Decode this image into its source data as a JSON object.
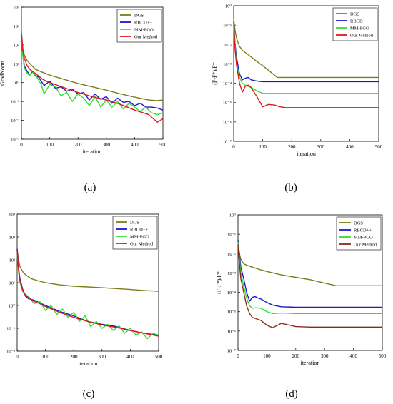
{
  "colors": {
    "DGS": "#7d7d1a",
    "RBCD++": "#1a1acc",
    "MM-PGO": "#33dd33",
    "Our Method": "#dd1a1a",
    "Our Method (d)": "#8b2a1a"
  },
  "captions": [
    "(a)",
    "(b)",
    "(c)",
    "(d)"
  ],
  "chart_data": [
    {
      "type": "line",
      "panel": "a",
      "xlabel": "iteration",
      "ylabel": "GradNorm",
      "xlim": [
        0,
        500
      ],
      "ylim_log10": [
        -3,
        4
      ],
      "xticks": [
        "0",
        "100",
        "200",
        "300",
        "400",
        "500"
      ],
      "yticks": [
        "10⁻³",
        "10⁻²",
        "10⁻¹",
        "10⁰",
        "10¹",
        "10²",
        "10³",
        "10⁴"
      ],
      "legend": "top-right",
      "series": [
        {
          "name": "DGS",
          "x": [
            0,
            5,
            10,
            20,
            30,
            50,
            75,
            100,
            150,
            200,
            250,
            300,
            350,
            400,
            450,
            480,
            500
          ],
          "y": [
            500,
            60,
            30,
            15,
            10,
            5,
            3.5,
            2.5,
            1.5,
            0.9,
            0.6,
            0.4,
            0.25,
            0.17,
            0.12,
            0.11,
            0.12
          ]
        },
        {
          "name": "RBCD++",
          "x": [
            0,
            5,
            10,
            20,
            30,
            40,
            50,
            60,
            80,
            100,
            120,
            140,
            160,
            180,
            200,
            220,
            240,
            260,
            280,
            300,
            320,
            340,
            360,
            380,
            400,
            420,
            440,
            460,
            480,
            500
          ],
          "y": [
            400,
            30,
            8,
            4,
            2.5,
            4,
            2.2,
            2.0,
            0.7,
            1.2,
            0.5,
            0.6,
            0.35,
            0.45,
            0.25,
            0.3,
            0.12,
            0.25,
            0.13,
            0.18,
            0.08,
            0.15,
            0.09,
            0.1,
            0.06,
            0.08,
            0.05,
            0.05,
            0.045,
            0.035
          ]
        },
        {
          "name": "MM-PGO",
          "x": [
            0,
            5,
            10,
            20,
            30,
            40,
            50,
            70,
            80,
            100,
            120,
            140,
            160,
            180,
            200,
            220,
            240,
            260,
            280,
            300,
            320,
            340,
            360,
            380,
            400,
            420,
            440,
            460,
            480,
            500
          ],
          "y": [
            300,
            25,
            6,
            3,
            2.5,
            3.5,
            2.5,
            0.8,
            0.25,
            0.8,
            0.6,
            0.2,
            0.3,
            0.1,
            0.25,
            0.15,
            0.06,
            0.18,
            0.05,
            0.12,
            0.05,
            0.1,
            0.04,
            0.08,
            0.05,
            0.03,
            0.05,
            0.025,
            0.02,
            0.025
          ]
        },
        {
          "name": "Our Method",
          "x": [
            0,
            5,
            10,
            20,
            30,
            50,
            75,
            100,
            150,
            200,
            250,
            300,
            350,
            400,
            450,
            480,
            500
          ],
          "y": [
            400,
            50,
            20,
            8,
            5,
            3,
            1.5,
            1.0,
            0.55,
            0.3,
            0.18,
            0.12,
            0.07,
            0.035,
            0.02,
            0.008,
            0.012
          ]
        }
      ]
    },
    {
      "type": "line",
      "panel": "b",
      "xlabel": "iteration",
      "ylabel": "(F-F*)/F*",
      "xlim": [
        0,
        500
      ],
      "ylim_log10": [
        -7,
        0
      ],
      "xticks": [
        "0",
        "100",
        "200",
        "300",
        "400",
        "500"
      ],
      "yticks": [
        "10⁻⁷",
        "10⁻⁶",
        "10⁻⁵",
        "10⁻⁴",
        "10⁻³",
        "10⁻²",
        "10⁻¹",
        "10⁰"
      ],
      "legend": "top-right",
      "series": [
        {
          "name": "DGS",
          "x": [
            0,
            5,
            10,
            20,
            30,
            50,
            75,
            100,
            125,
            150,
            200,
            300,
            400,
            500
          ],
          "y": [
            0.2,
            0.05,
            0.02,
            0.008,
            0.005,
            0.003,
            0.0015,
            0.0008,
            0.0004,
            0.0002,
            0.0002,
            0.0002,
            0.0002,
            0.0002
          ]
        },
        {
          "name": "RBCD++",
          "x": [
            0,
            5,
            10,
            20,
            30,
            40,
            50,
            60,
            80,
            100,
            150,
            200,
            300,
            400,
            500
          ],
          "y": [
            0.15,
            0.01,
            0.002,
            0.0003,
            0.00015,
            0.00018,
            0.0002,
            0.00015,
            0.00013,
            0.00012,
            0.00012,
            0.00012,
            0.00012,
            0.00012,
            0.00012
          ]
        },
        {
          "name": "MM-PGO",
          "x": [
            0,
            5,
            10,
            20,
            30,
            40,
            60,
            80,
            100,
            150,
            200,
            300,
            400,
            500
          ],
          "y": [
            0.1,
            0.008,
            0.001,
            0.0002,
            0.0001,
            8e-05,
            6e-05,
            4e-05,
            3e-05,
            3e-05,
            3e-05,
            3e-05,
            3e-05,
            3e-05
          ]
        },
        {
          "name": "Our Method",
          "x": [
            0,
            5,
            10,
            20,
            30,
            40,
            50,
            60,
            80,
            100,
            120,
            140,
            160,
            180,
            200,
            300,
            400,
            500
          ],
          "y": [
            0.1,
            0.005,
            0.0008,
            0.0001,
            3.5e-05,
            7e-05,
            8e-05,
            6e-05,
            2e-05,
            6e-06,
            8e-06,
            7.5e-06,
            6e-06,
            5.5e-06,
            5.5e-06,
            5.5e-06,
            5.5e-06,
            5.5e-06
          ]
        }
      ]
    },
    {
      "type": "line",
      "panel": "c",
      "xlabel": "iteration",
      "ylabel": "GradNorm",
      "xlim": [
        0,
        500
      ],
      "ylim_log10": [
        -2,
        4
      ],
      "xticks": [
        "0",
        "100",
        "200",
        "300",
        "400",
        "500"
      ],
      "yticks": [
        "10⁻²",
        "10⁻¹",
        "10⁰",
        "10¹",
        "10²",
        "10³",
        "10⁴"
      ],
      "legend": "top-right",
      "series": [
        {
          "name": "DGS",
          "x": [
            0,
            5,
            10,
            20,
            30,
            50,
            75,
            100,
            150,
            200,
            250,
            300,
            350,
            400,
            450,
            500
          ],
          "y": [
            300,
            100,
            50,
            30,
            22,
            15,
            12,
            10,
            8,
            7,
            6.5,
            6,
            5.5,
            5,
            4.5,
            4.2
          ]
        },
        {
          "name": "RBCD++",
          "x": [
            0,
            5,
            10,
            20,
            30,
            40,
            60,
            80,
            100,
            150,
            200,
            250,
            300,
            350,
            400,
            450,
            500
          ],
          "y": [
            300,
            40,
            15,
            5,
            2.5,
            2.0,
            1.7,
            1.3,
            1.0,
            0.55,
            0.35,
            0.2,
            0.15,
            0.12,
            0.08,
            0.06,
            0.05
          ]
        },
        {
          "name": "MM-PGO",
          "x": [
            0,
            5,
            10,
            20,
            30,
            40,
            60,
            80,
            100,
            120,
            140,
            160,
            180,
            200,
            220,
            240,
            260,
            280,
            300,
            320,
            340,
            360,
            380,
            400,
            420,
            440,
            460,
            480,
            500
          ],
          "y": [
            200,
            30,
            10,
            4,
            3,
            2.5,
            1.2,
            1.5,
            0.6,
            1.0,
            0.4,
            0.7,
            0.3,
            0.5,
            0.2,
            0.35,
            0.12,
            0.2,
            0.1,
            0.15,
            0.08,
            0.13,
            0.06,
            0.1,
            0.05,
            0.07,
            0.035,
            0.06,
            0.05
          ]
        },
        {
          "name": "Our Method",
          "x": [
            0,
            5,
            10,
            20,
            30,
            40,
            60,
            80,
            100,
            150,
            200,
            250,
            300,
            350,
            400,
            450,
            500
          ],
          "y": [
            250,
            35,
            12,
            4.5,
            2.8,
            2.2,
            1.5,
            1.2,
            0.9,
            0.5,
            0.3,
            0.2,
            0.14,
            0.11,
            0.08,
            0.06,
            0.045
          ]
        }
      ]
    },
    {
      "type": "line",
      "panel": "d",
      "xlabel": "iteration",
      "ylabel": "(F-F*)/F*",
      "xlim": [
        0,
        500
      ],
      "ylim_log10": [
        -7,
        0
      ],
      "xticks": [
        "0",
        "100",
        "200",
        "300",
        "400",
        "500"
      ],
      "yticks": [
        "10⁻⁷",
        "10⁻⁶",
        "10⁻⁵",
        "10⁻⁴",
        "10⁻³",
        "10⁻²",
        "10⁻¹",
        "10⁰"
      ],
      "legend": "top-right",
      "series": [
        {
          "name": "DGS",
          "x": [
            0,
            5,
            10,
            20,
            30,
            50,
            75,
            100,
            150,
            200,
            250,
            300,
            340,
            400,
            450,
            500
          ],
          "y": [
            0.05,
            0.01,
            0.005,
            0.003,
            0.0025,
            0.002,
            0.0015,
            0.0012,
            0.0008,
            0.0006,
            0.00045,
            0.0003,
            0.00022,
            0.00022,
            0.00022,
            0.00022
          ]
        },
        {
          "name": "RBCD++",
          "x": [
            0,
            5,
            10,
            20,
            30,
            40,
            50,
            60,
            70,
            80,
            100,
            120,
            150,
            200,
            300,
            400,
            500
          ],
          "y": [
            0.05,
            0.008,
            0.002,
            0.0005,
            0.0001,
            3.5e-05,
            5.5e-05,
            6e-05,
            5e-05,
            4.5e-05,
            3e-05,
            2.2e-05,
            1.8e-05,
            1.7e-05,
            1.7e-05,
            1.7e-05,
            1.7e-05
          ]
        },
        {
          "name": "MM-PGO",
          "x": [
            0,
            5,
            10,
            20,
            30,
            40,
            50,
            60,
            80,
            100,
            120,
            150,
            200,
            300,
            400,
            500
          ],
          "y": [
            0.04,
            0.005,
            0.001,
            0.0002,
            5e-05,
            2e-05,
            1.5e-05,
            1.6e-05,
            1.5e-05,
            1e-05,
            8e-06,
            8.5e-06,
            8e-06,
            8e-06,
            8e-06,
            8e-06
          ]
        },
        {
          "name": "Our Method",
          "x": [
            0,
            5,
            10,
            20,
            30,
            40,
            50,
            60,
            80,
            100,
            120,
            150,
            180,
            200,
            250,
            300,
            400,
            500
          ],
          "y": [
            0.03,
            0.003,
            0.0005,
            0.0001,
            2e-05,
            8e-06,
            5e-06,
            4.5e-06,
            3.5e-06,
            2e-06,
            1.5e-06,
            2.5e-06,
            2e-06,
            1.7e-06,
            1.6e-06,
            1.6e-06,
            1.6e-06,
            1.6e-06
          ]
        }
      ]
    }
  ]
}
